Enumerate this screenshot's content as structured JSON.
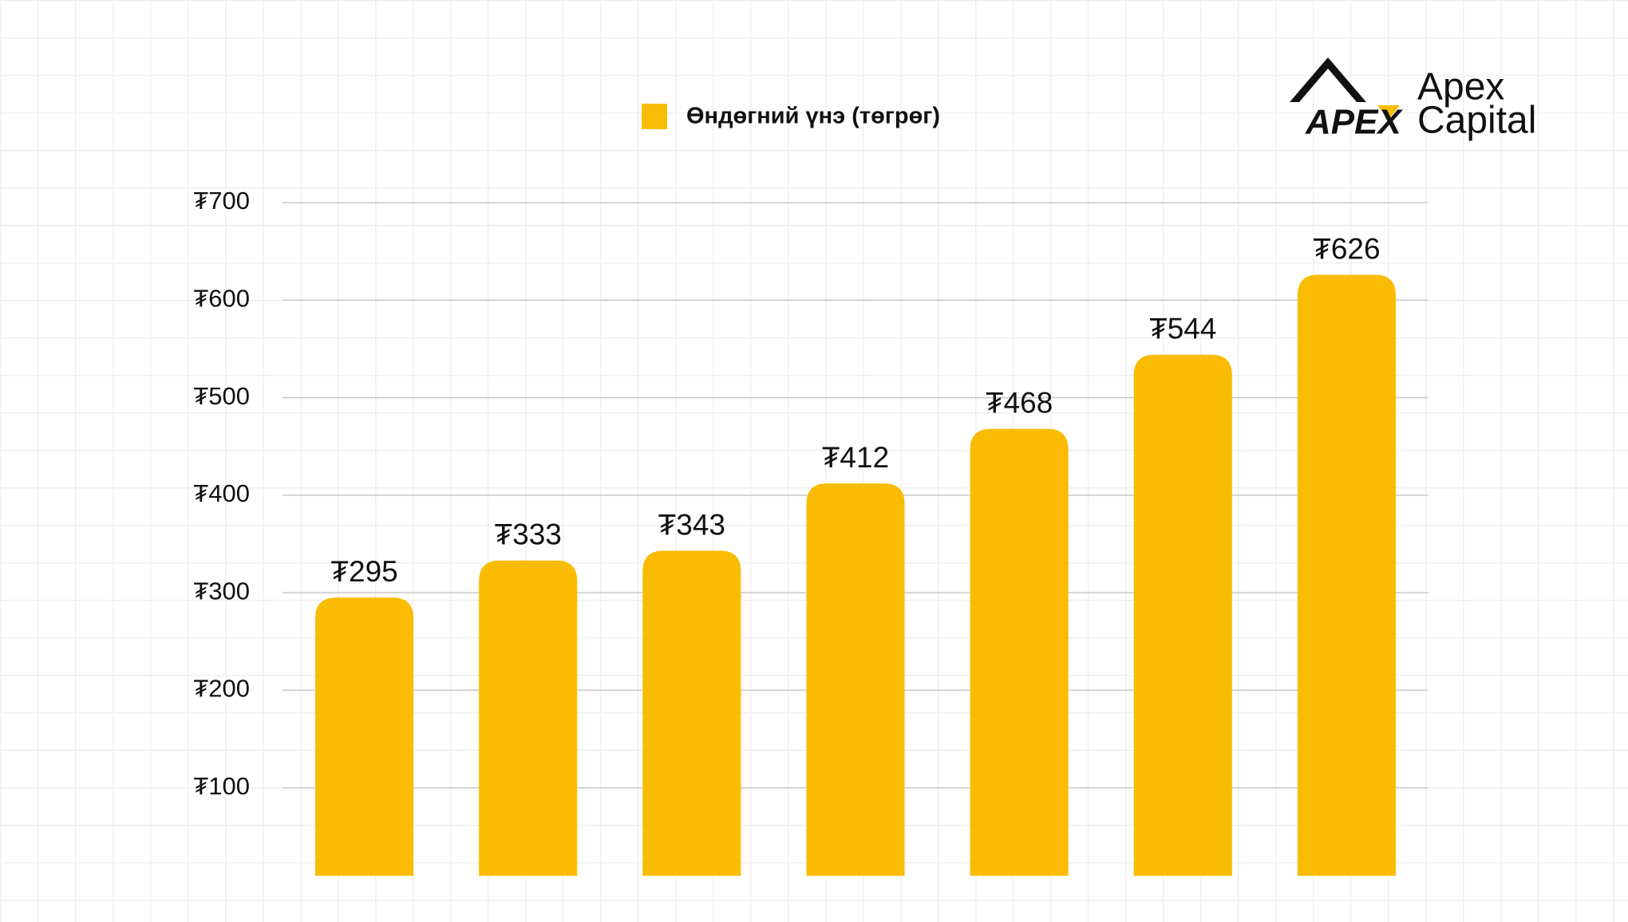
{
  "chart_data": {
    "type": "bar",
    "categories": [
      null,
      null,
      null,
      null,
      null,
      null,
      null
    ],
    "series": [
      {
        "name": "Өндөгний үнэ (төгрөг)",
        "color": "#f9bc02",
        "values": [
          295,
          333,
          343,
          412,
          468,
          544,
          626
        ],
        "value_labels": [
          "₮295",
          "₮333",
          "₮343",
          "₮412",
          "₮468",
          "₮544",
          "₮626"
        ]
      }
    ],
    "ylim": [
      0,
      700
    ],
    "yticks": [
      {
        "value": 100,
        "label": "₮100"
      },
      {
        "value": 200,
        "label": "₮200"
      },
      {
        "value": 300,
        "label": "₮300"
      },
      {
        "value": 400,
        "label": "₮400"
      },
      {
        "value": 500,
        "label": "₮500"
      },
      {
        "value": 600,
        "label": "₮600"
      },
      {
        "value": 700,
        "label": "₮700"
      }
    ],
    "grid": true,
    "legend": "top"
  },
  "logo": {
    "wordmark": "APEX",
    "name_line1": "Apex",
    "name_line2": "Capital"
  }
}
